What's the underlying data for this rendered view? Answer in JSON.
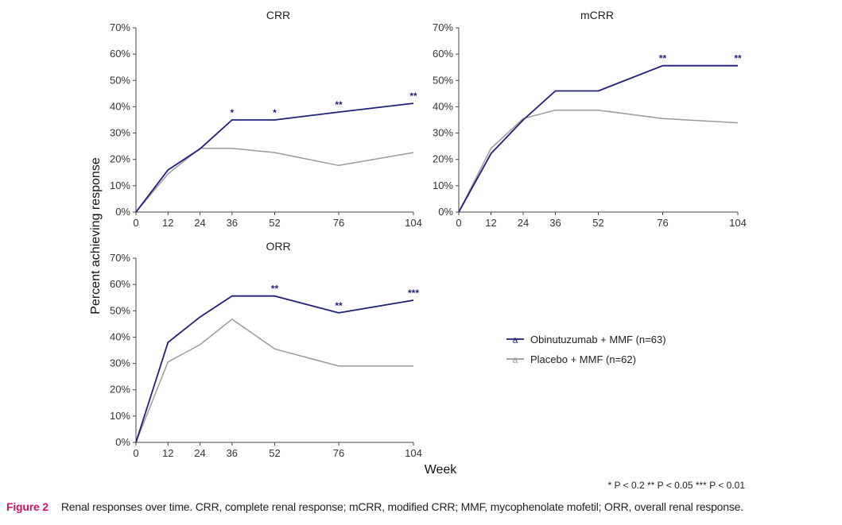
{
  "figure": {
    "ylabel": "Percent achieving response",
    "xlabel": "Week",
    "footnote": "* P < 0.2  ** P < 0.05  *** P < 0.01",
    "caption_label": "Figure 2",
    "caption_text": "Renal responses over time. CRR, complete renal response; mCRR, modified CRR; MMF, mycophenolate mofetil; ORR, overall renal response.",
    "legend": [
      {
        "label": "Obinutuzumab + MMF (n=63)",
        "color": "#1f1f7a",
        "marker": "a"
      },
      {
        "label": "Placebo + MMF (n=62)",
        "color": "#9a9a9a",
        "marker": "a"
      }
    ]
  },
  "chart_data": [
    {
      "type": "line",
      "title": "CRR",
      "x": [
        0,
        12,
        24,
        36,
        52,
        76,
        104
      ],
      "yticks": [
        "0%",
        "10%",
        "20%",
        "30%",
        "40%",
        "50%",
        "60%",
        "70%"
      ],
      "xticks": [
        "0",
        "12",
        "24",
        "36",
        "52",
        "76",
        "104"
      ],
      "ylim": [
        0,
        70
      ],
      "series": [
        {
          "name": "Obinutuzumab + MMF (n=63)",
          "color": "#1f1f7a",
          "values": [
            0,
            16,
            24,
            35,
            35,
            38,
            41.3
          ]
        },
        {
          "name": "Placebo + MMF (n=62)",
          "color": "#9a9a9a",
          "values": [
            0,
            14.5,
            24.2,
            24.2,
            22.6,
            17.7,
            22.6
          ]
        }
      ],
      "significance": [
        {
          "x": 36,
          "label": "*"
        },
        {
          "x": 52,
          "label": "*"
        },
        {
          "x": 76,
          "label": "**"
        },
        {
          "x": 104,
          "label": "**"
        }
      ]
    },
    {
      "type": "line",
      "title": "mCRR",
      "x": [
        0,
        12,
        24,
        36,
        52,
        76,
        104
      ],
      "yticks": [
        "0%",
        "10%",
        "20%",
        "30%",
        "40%",
        "50%",
        "60%",
        "70%"
      ],
      "xticks": [
        "0",
        "12",
        "24",
        "36",
        "52",
        "76",
        "104"
      ],
      "ylim": [
        0,
        70
      ],
      "series": [
        {
          "name": "Obinutuzumab + MMF (n=63)",
          "color": "#1f1f7a",
          "values": [
            0,
            22.2,
            35,
            46,
            46,
            55.6,
            55.6
          ]
        },
        {
          "name": "Placebo + MMF (n=62)",
          "color": "#9a9a9a",
          "values": [
            0,
            24.2,
            35.5,
            38.7,
            38.7,
            35.5,
            33.9
          ]
        }
      ],
      "significance": [
        {
          "x": 76,
          "label": "**"
        },
        {
          "x": 104,
          "label": "**"
        }
      ]
    },
    {
      "type": "line",
      "title": "ORR",
      "x": [
        0,
        12,
        24,
        36,
        52,
        76,
        104
      ],
      "yticks": [
        "0%",
        "10%",
        "20%",
        "30%",
        "40%",
        "50%",
        "60%",
        "70%"
      ],
      "xticks": [
        "0",
        "12",
        "24",
        "36",
        "52",
        "76",
        "104"
      ],
      "ylim": [
        0,
        70
      ],
      "series": [
        {
          "name": "Obinutuzumab + MMF (n=63)",
          "color": "#1f1f7a",
          "values": [
            0,
            38,
            47.6,
            55.6,
            55.6,
            49.2,
            54
          ]
        },
        {
          "name": "Placebo + MMF (n=62)",
          "color": "#9a9a9a",
          "values": [
            0,
            30.6,
            37.1,
            46.8,
            35.5,
            29,
            29
          ]
        }
      ],
      "significance": [
        {
          "x": 52,
          "label": "**"
        },
        {
          "x": 76,
          "label": "**"
        },
        {
          "x": 104,
          "label": "***"
        }
      ]
    }
  ]
}
